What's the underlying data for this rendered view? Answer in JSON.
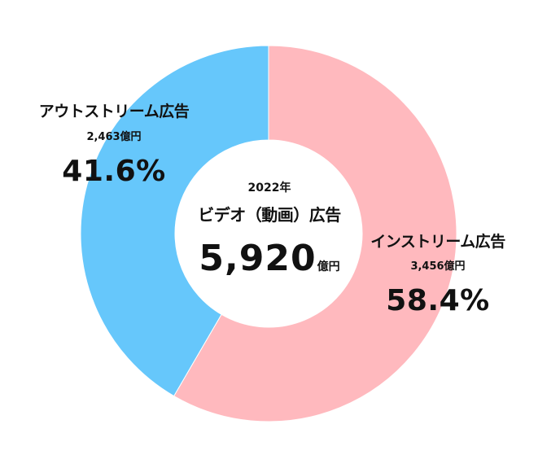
{
  "chart_data": {
    "type": "pie",
    "subtype": "donut",
    "center": {
      "year": "2022年",
      "title": "ビデオ（動画）広告",
      "total_value": "5,920",
      "total_unit": "億円"
    },
    "slices": [
      {
        "label": "インストリーム広告",
        "amount_text": "3,456億円",
        "amount": 3456,
        "percent_text": "58.4%",
        "percent": 58.4,
        "color": "#ffb9be"
      },
      {
        "label": "アウトストリーム広告",
        "amount_text": "2,463億円",
        "amount": 2463,
        "percent_text": "41.6%",
        "percent": 41.6,
        "color": "#66c7fb"
      }
    ],
    "start_angle": "12 o'clock",
    "direction": "clockwise"
  }
}
